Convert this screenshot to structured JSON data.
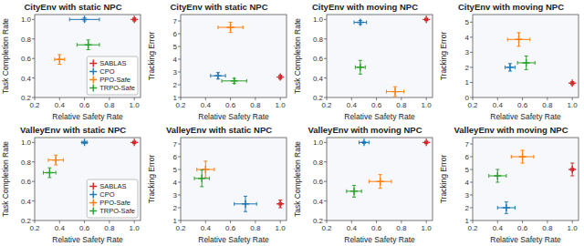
{
  "chart_data": [
    {
      "type": "scatter",
      "title": "CityEnv with static NPC",
      "x_label": "Relative Safety Rate",
      "y_label": "Task Completion Rate",
      "xlim": [
        0.2,
        1.05
      ],
      "ylim": [
        0.2,
        1.05
      ],
      "xticks": [
        0.2,
        0.4,
        0.6,
        0.8,
        {
          "value": 1.0,
          "label": "1.0"
        }
      ],
      "yticks": [
        0.2,
        0.4,
        0.6,
        0.8,
        {
          "value": 1.0,
          "label": "1.0"
        }
      ],
      "marker": "plus",
      "legend": "lower right",
      "series": [
        {
          "name": "SABLAS",
          "color": "#d62728",
          "x": [
            1.0
          ],
          "values": [
            1.0
          ],
          "x_errors": [
            0.01
          ],
          "y_errors": [
            0.015
          ]
        },
        {
          "name": "CPO",
          "color": "#1f77b4",
          "x": [
            0.6
          ],
          "values": [
            1.0
          ],
          "x_errors": [
            0.12
          ],
          "y_errors": [
            0.015
          ]
        },
        {
          "name": "PPO-Safe",
          "color": "#ff7f0e",
          "x": [
            0.4
          ],
          "values": [
            0.59
          ],
          "x_errors": [
            0.04
          ],
          "y_errors": [
            0.05
          ]
        },
        {
          "name": "TRPO-Safe",
          "color": "#2ca02c",
          "x": [
            0.63
          ],
          "values": [
            0.74
          ],
          "x_errors": [
            0.09
          ],
          "y_errors": [
            0.05
          ]
        }
      ]
    },
    {
      "type": "scatter",
      "title": "CityEnv with static NPC",
      "x_label": "Relative Safety Rate",
      "y_label": "Tracking Error",
      "xlim": [
        0.2,
        1.05
      ],
      "ylim": [
        1.0,
        7.5
      ],
      "xticks": [
        0.2,
        0.4,
        0.6,
        0.8,
        {
          "value": 1.0,
          "label": "1.0"
        }
      ],
      "yticks": [
        1,
        2,
        3,
        4,
        5,
        6,
        7
      ],
      "marker": "plus",
      "series": [
        {
          "name": "SABLAS",
          "color": "#d62728",
          "x": [
            1.0
          ],
          "values": [
            2.6
          ],
          "x_errors": [
            0.01
          ],
          "y_errors": [
            0.15
          ]
        },
        {
          "name": "CPO",
          "color": "#1f77b4",
          "x": [
            0.5
          ],
          "values": [
            2.7
          ],
          "x_errors": [
            0.06
          ],
          "y_errors": [
            0.25
          ]
        },
        {
          "name": "PPO-Safe",
          "color": "#ff7f0e",
          "x": [
            0.6
          ],
          "values": [
            6.5
          ],
          "x_errors": [
            0.1
          ],
          "y_errors": [
            0.4
          ]
        },
        {
          "name": "TRPO-Safe",
          "color": "#2ca02c",
          "x": [
            0.63
          ],
          "values": [
            2.3
          ],
          "x_errors": [
            0.1
          ],
          "y_errors": [
            0.2
          ]
        }
      ]
    },
    {
      "type": "scatter",
      "title": "CityEnv with moving NPC",
      "x_label": "Relative Safety Rate",
      "y_label": "Task Completion Rate",
      "xlim": [
        0.2,
        1.05
      ],
      "ylim": [
        0.2,
        1.05
      ],
      "xticks": [
        0.2,
        0.4,
        0.6,
        0.8,
        {
          "value": 1.0,
          "label": "1.0"
        }
      ],
      "yticks": [
        0.2,
        0.4,
        0.6,
        0.8,
        {
          "value": 1.0,
          "label": "1.0"
        }
      ],
      "marker": "plus",
      "series": [
        {
          "name": "SABLAS",
          "color": "#d62728",
          "x": [
            1.0
          ],
          "values": [
            1.0
          ],
          "x_errors": [
            0.01
          ],
          "y_errors": [
            0.01
          ]
        },
        {
          "name": "CPO",
          "color": "#1f77b4",
          "x": [
            0.47
          ],
          "values": [
            0.97
          ],
          "x_errors": [
            0.05
          ],
          "y_errors": [
            0.02
          ]
        },
        {
          "name": "PPO-Safe",
          "color": "#ff7f0e",
          "x": [
            0.75
          ],
          "values": [
            0.26
          ],
          "x_errors": [
            0.07
          ],
          "y_errors": [
            0.05
          ]
        },
        {
          "name": "TRPO-Safe",
          "color": "#2ca02c",
          "x": [
            0.47
          ],
          "values": [
            0.51
          ],
          "x_errors": [
            0.04
          ],
          "y_errors": [
            0.07
          ]
        }
      ]
    },
    {
      "type": "scatter",
      "title": "CityEnv with moving NPC",
      "x_label": "Relative Safety Rate",
      "y_label": "Tracking Error",
      "xlim": [
        0.2,
        1.05
      ],
      "ylim": [
        0,
        5.5
      ],
      "xticks": [
        0.2,
        0.4,
        0.6,
        0.8,
        {
          "value": 1.0,
          "label": "1.0"
        }
      ],
      "yticks": [
        0,
        1,
        2,
        3,
        4,
        5
      ],
      "marker": "plus",
      "series": [
        {
          "name": "SABLAS",
          "color": "#d62728",
          "x": [
            1.0
          ],
          "values": [
            0.95
          ],
          "x_errors": [
            0.01
          ],
          "y_errors": [
            0.1
          ]
        },
        {
          "name": "CPO",
          "color": "#1f77b4",
          "x": [
            0.5
          ],
          "values": [
            2.0
          ],
          "x_errors": [
            0.04
          ],
          "y_errors": [
            0.25
          ]
        },
        {
          "name": "PPO-Safe",
          "color": "#ff7f0e",
          "x": [
            0.57
          ],
          "values": [
            3.85
          ],
          "x_errors": [
            0.09
          ],
          "y_errors": [
            0.45
          ]
        },
        {
          "name": "TRPO-Safe",
          "color": "#2ca02c",
          "x": [
            0.63
          ],
          "values": [
            2.3
          ],
          "x_errors": [
            0.07
          ],
          "y_errors": [
            0.45
          ]
        }
      ]
    },
    {
      "type": "scatter",
      "title": "ValleyEnv with static NPC",
      "x_label": "Relative Safety Rate",
      "y_label": "Task Completion Rate",
      "xlim": [
        0.2,
        1.05
      ],
      "ylim": [
        0.2,
        1.05
      ],
      "xticks": [
        0.2,
        0.4,
        0.6,
        0.8,
        {
          "value": 1.0,
          "label": "1.0"
        }
      ],
      "yticks": [
        0.2,
        0.4,
        0.6,
        0.8,
        {
          "value": 1.0,
          "label": "1.0"
        }
      ],
      "marker": "plus",
      "legend": "lower right",
      "series": [
        {
          "name": "SABLAS",
          "color": "#d62728",
          "x": [
            1.0
          ],
          "values": [
            1.0
          ],
          "x_errors": [
            0.01
          ],
          "y_errors": [
            0.01
          ]
        },
        {
          "name": "CPO",
          "color": "#1f77b4",
          "x": [
            0.6
          ],
          "values": [
            1.0
          ],
          "x_errors": [
            0.02
          ],
          "y_errors": [
            0.01
          ]
        },
        {
          "name": "PPO-Safe",
          "color": "#ff7f0e",
          "x": [
            0.37
          ],
          "values": [
            0.82
          ],
          "x_errors": [
            0.06
          ],
          "y_errors": [
            0.05
          ]
        },
        {
          "name": "TRPO-Safe",
          "color": "#2ca02c",
          "x": [
            0.32
          ],
          "values": [
            0.69
          ],
          "x_errors": [
            0.05
          ],
          "y_errors": [
            0.05
          ]
        }
      ]
    },
    {
      "type": "scatter",
      "title": "ValleyEnv with static NPC",
      "x_label": "Relative Safety Rate",
      "y_label": "Tracking Error",
      "xlim": [
        0.2,
        1.05
      ],
      "ylim": [
        1.0,
        7.5
      ],
      "xticks": [
        0.2,
        0.4,
        0.6,
        0.8,
        {
          "value": 1.0,
          "label": "1.0"
        }
      ],
      "yticks": [
        1,
        2,
        3,
        4,
        5,
        6,
        7
      ],
      "marker": "plus",
      "series": [
        {
          "name": "SABLAS",
          "color": "#d62728",
          "x": [
            1.0
          ],
          "values": [
            2.3
          ],
          "x_errors": [
            0.01
          ],
          "y_errors": [
            0.3
          ]
        },
        {
          "name": "CPO",
          "color": "#1f77b4",
          "x": [
            0.72
          ],
          "values": [
            2.3
          ],
          "x_errors": [
            0.09
          ],
          "y_errors": [
            0.6
          ]
        },
        {
          "name": "PPO-Safe",
          "color": "#ff7f0e",
          "x": [
            0.4
          ],
          "values": [
            5.0
          ],
          "x_errors": [
            0.07
          ],
          "y_errors": [
            0.65
          ]
        },
        {
          "name": "TRPO-Safe",
          "color": "#2ca02c",
          "x": [
            0.37
          ],
          "values": [
            4.3
          ],
          "x_errors": [
            0.06
          ],
          "y_errors": [
            0.65
          ]
        }
      ]
    },
    {
      "type": "scatter",
      "title": "ValleyEnv with moving NPC",
      "x_label": "Relative Safety Rate",
      "y_label": "Task Completion Rate",
      "xlim": [
        0.2,
        1.05
      ],
      "ylim": [
        0.2,
        1.05
      ],
      "xticks": [
        0.2,
        0.4,
        0.6,
        0.8,
        {
          "value": 1.0,
          "label": "1.0"
        }
      ],
      "yticks": [
        0.2,
        0.4,
        0.6,
        0.8,
        {
          "value": 1.0,
          "label": "1.0"
        }
      ],
      "marker": "plus",
      "series": [
        {
          "name": "SABLAS",
          "color": "#d62728",
          "x": [
            1.0
          ],
          "values": [
            1.0
          ],
          "x_errors": [
            0.01
          ],
          "y_errors": [
            0.01
          ]
        },
        {
          "name": "CPO",
          "color": "#1f77b4",
          "x": [
            0.5
          ],
          "values": [
            1.0
          ],
          "x_errors": [
            0.04
          ],
          "y_errors": [
            0.01
          ]
        },
        {
          "name": "PPO-Safe",
          "color": "#ff7f0e",
          "x": [
            0.63
          ],
          "values": [
            0.6
          ],
          "x_errors": [
            0.09
          ],
          "y_errors": [
            0.07
          ]
        },
        {
          "name": "TRPO-Safe",
          "color": "#2ca02c",
          "x": [
            0.42
          ],
          "values": [
            0.5
          ],
          "x_errors": [
            0.06
          ],
          "y_errors": [
            0.06
          ]
        }
      ]
    },
    {
      "type": "scatter",
      "title": "ValleyEnv with moving NPC",
      "x_label": "Relative Safety Rate",
      "y_label": "Tracking Error",
      "xlim": [
        0.2,
        1.05
      ],
      "ylim": [
        1.0,
        7.5
      ],
      "xticks": [
        0.2,
        0.4,
        0.6,
        0.8,
        {
          "value": 1.0,
          "label": "1.0"
        }
      ],
      "yticks": [
        1,
        2,
        3,
        4,
        5,
        6,
        7
      ],
      "marker": "plus",
      "series": [
        {
          "name": "SABLAS",
          "color": "#d62728",
          "x": [
            1.0
          ],
          "values": [
            5.0
          ],
          "x_errors": [
            0.01
          ],
          "y_errors": [
            0.5
          ]
        },
        {
          "name": "CPO",
          "color": "#1f77b4",
          "x": [
            0.47
          ],
          "values": [
            2.0
          ],
          "x_errors": [
            0.07
          ],
          "y_errors": [
            0.45
          ]
        },
        {
          "name": "PPO-Safe",
          "color": "#ff7f0e",
          "x": [
            0.6
          ],
          "values": [
            6.0
          ],
          "x_errors": [
            0.09
          ],
          "y_errors": [
            0.5
          ]
        },
        {
          "name": "TRPO-Safe",
          "color": "#2ca02c",
          "x": [
            0.4
          ],
          "values": [
            4.5
          ],
          "x_errors": [
            0.07
          ],
          "y_errors": [
            0.5
          ]
        }
      ]
    }
  ]
}
